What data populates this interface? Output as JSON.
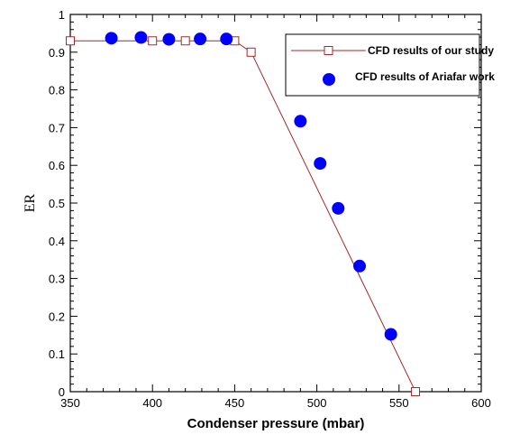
{
  "chart_data": {
    "type": "scatter",
    "title": "",
    "xlabel": "Condenser pressure (mbar)",
    "ylabel": "ER",
    "xlim": [
      350,
      600
    ],
    "ylim": [
      0,
      1
    ],
    "xticks": [
      "350",
      "400",
      "450",
      "500",
      "550",
      "600"
    ],
    "yticks": [
      "0",
      "0.1",
      "0.2",
      "0.3",
      "0.4",
      "0.5",
      "0.6",
      "0.7",
      "0.8",
      "0.9",
      "1"
    ],
    "grid": false,
    "legend_position": "top-right",
    "series": [
      {
        "name": "CFD results of our study",
        "style": "line-with-open-square-markers",
        "color": "#a52a2a",
        "x": [
          350,
          400,
          420,
          450,
          460,
          560
        ],
        "y": [
          0.93,
          0.93,
          0.93,
          0.93,
          0.9,
          0.0
        ]
      },
      {
        "name": "CFD results of Ariafar work",
        "style": "filled-circle-markers",
        "color": "#0000ff",
        "x": [
          375,
          393,
          410,
          429,
          445,
          490,
          502,
          513,
          526,
          545
        ],
        "y": [
          0.937,
          0.939,
          0.934,
          0.935,
          0.935,
          0.717,
          0.605,
          0.486,
          0.333,
          0.152
        ]
      }
    ]
  }
}
